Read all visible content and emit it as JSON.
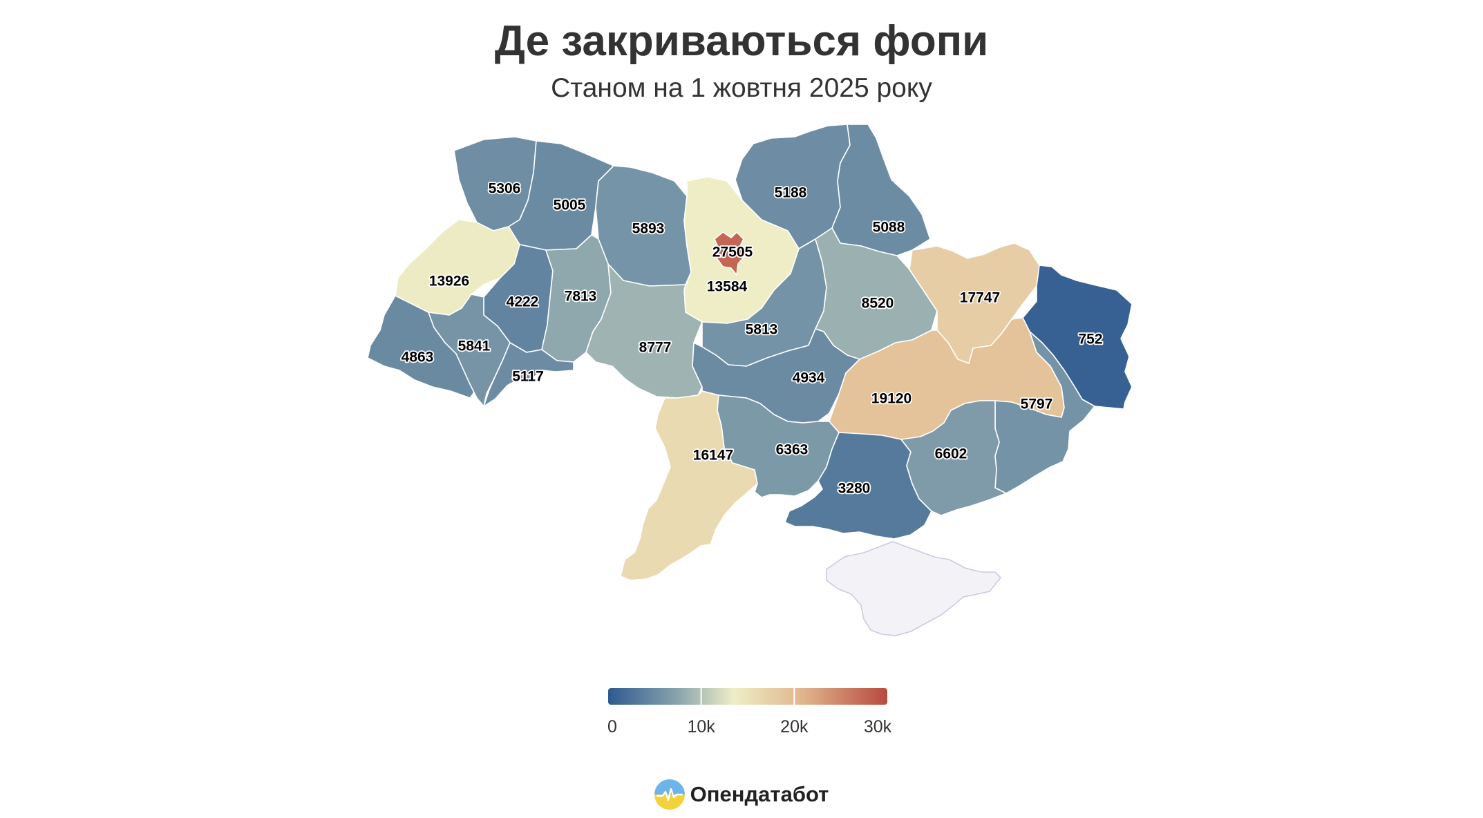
{
  "title": "Де закриваються фопи",
  "subtitle": "Станом на 1 жовтня 2025 року",
  "colors": {
    "scale_low": "#2e5a8f",
    "scale_mid_low": "#8aa4ad",
    "scale_mid": "#eeeec6",
    "scale_mid_high": "#e0b48c",
    "scale_high": "#b84a3e",
    "no_data": "#f3f3f7"
  },
  "regions": [
    {
      "name": "Волинська",
      "value": 5306
    },
    {
      "name": "Рівненська",
      "value": 5005
    },
    {
      "name": "Житомирська",
      "value": 5893
    },
    {
      "name": "Київська",
      "value": 13584
    },
    {
      "name": "м. Київ",
      "value": 27505
    },
    {
      "name": "Чернігівська",
      "value": 5188
    },
    {
      "name": "Сумська",
      "value": 5088
    },
    {
      "name": "Львівська",
      "value": 13926
    },
    {
      "name": "Тернопільська",
      "value": 4222
    },
    {
      "name": "Хмельницька",
      "value": 7813
    },
    {
      "name": "Вінницька",
      "value": 8777
    },
    {
      "name": "Черкаська",
      "value": 5813
    },
    {
      "name": "Полтавська",
      "value": 8520
    },
    {
      "name": "Харківська",
      "value": 17747
    },
    {
      "name": "Луганська",
      "value": 752
    },
    {
      "name": "Закарпатська",
      "value": 4863
    },
    {
      "name": "Івано-Франківська",
      "value": 5841
    },
    {
      "name": "Чернівецька",
      "value": 5117
    },
    {
      "name": "Кіровоградська",
      "value": 4934
    },
    {
      "name": "Дніпропетровська",
      "value": 19120
    },
    {
      "name": "Донецька",
      "value": 5797
    },
    {
      "name": "Одеська",
      "value": 16147
    },
    {
      "name": "Миколаївська",
      "value": 6363
    },
    {
      "name": "Херсонська",
      "value": 3280
    },
    {
      "name": "Запорізька",
      "value": 6602
    },
    {
      "name": "АР Крим",
      "value": null
    }
  ],
  "legend": {
    "min": 0,
    "max": 30000,
    "ticks": [
      {
        "value": 0,
        "label": "0"
      },
      {
        "value": 10000,
        "label": "10k"
      },
      {
        "value": 20000,
        "label": "20k"
      },
      {
        "value": 30000,
        "label": "30k"
      }
    ]
  },
  "brand": {
    "name": "Опендатабот",
    "icon": "opendatabot-logo-icon"
  }
}
